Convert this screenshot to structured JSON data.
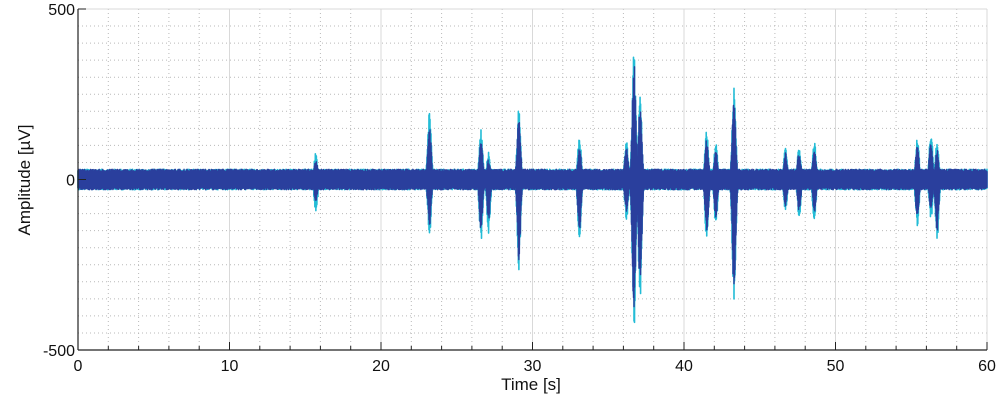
{
  "chart_data": {
    "type": "line",
    "title": "",
    "xlabel": "Time [s]",
    "ylabel": "Amplitude [µV]",
    "xlim": [
      0,
      60
    ],
    "ylim": [
      -500,
      500
    ],
    "x_major_ticks": [
      0,
      10,
      20,
      30,
      40,
      50,
      60
    ],
    "x_tick_labels": [
      "0",
      "10",
      "20",
      "30",
      "40",
      "50",
      "60"
    ],
    "x_minor_step": 2,
    "y_major_ticks": [
      -500,
      0,
      500
    ],
    "y_tick_labels": [
      "-500",
      "0",
      "500"
    ],
    "y_minor_step": 50,
    "grid": true,
    "legend": "none",
    "baseline_noise_amplitude": 30,
    "series": [
      {
        "color": "#23bcd6",
        "bursts": [
          {
            "t": 15.7,
            "hi": 80,
            "lo": -100
          },
          {
            "t": 23.2,
            "hi": 210,
            "lo": -170
          },
          {
            "t": 26.6,
            "hi": 150,
            "lo": -180
          },
          {
            "t": 27.1,
            "hi": 80,
            "lo": -160
          },
          {
            "t": 29.1,
            "hi": 215,
            "lo": -265
          },
          {
            "t": 33.1,
            "hi": 135,
            "lo": -185
          },
          {
            "t": 36.2,
            "hi": 120,
            "lo": -120
          },
          {
            "t": 36.7,
            "hi": 385,
            "lo": -445
          },
          {
            "t": 37.1,
            "hi": 255,
            "lo": -360
          },
          {
            "t": 41.5,
            "hi": 150,
            "lo": -200
          },
          {
            "t": 42.1,
            "hi": 110,
            "lo": -140
          },
          {
            "t": 43.3,
            "hi": 290,
            "lo": -380
          },
          {
            "t": 46.7,
            "hi": 100,
            "lo": -95
          },
          {
            "t": 47.6,
            "hi": 105,
            "lo": -120
          },
          {
            "t": 48.6,
            "hi": 120,
            "lo": -125
          },
          {
            "t": 55.4,
            "hi": 125,
            "lo": -140
          },
          {
            "t": 56.3,
            "hi": 145,
            "lo": -120
          },
          {
            "t": 56.7,
            "hi": 110,
            "lo": -185
          }
        ]
      },
      {
        "color": "#2a3f9d",
        "bursts": [
          {
            "t": 15.7,
            "hi": 60,
            "lo": -70
          },
          {
            "t": 23.2,
            "hi": 160,
            "lo": -140
          },
          {
            "t": 26.6,
            "hi": 120,
            "lo": -150
          },
          {
            "t": 27.1,
            "hi": 60,
            "lo": -120
          },
          {
            "t": 29.1,
            "hi": 185,
            "lo": -235
          },
          {
            "t": 33.1,
            "hi": 100,
            "lo": -150
          },
          {
            "t": 36.2,
            "hi": 100,
            "lo": -100
          },
          {
            "t": 36.7,
            "hi": 350,
            "lo": -410
          },
          {
            "t": 37.1,
            "hi": 220,
            "lo": -320
          },
          {
            "t": 41.5,
            "hi": 120,
            "lo": -165
          },
          {
            "t": 42.1,
            "hi": 90,
            "lo": -110
          },
          {
            "t": 43.3,
            "hi": 250,
            "lo": -330
          },
          {
            "t": 46.7,
            "hi": 80,
            "lo": -80
          },
          {
            "t": 47.6,
            "hi": 85,
            "lo": -100
          },
          {
            "t": 48.6,
            "hi": 95,
            "lo": -100
          },
          {
            "t": 55.4,
            "hi": 100,
            "lo": -115
          },
          {
            "t": 56.3,
            "hi": 115,
            "lo": -95
          },
          {
            "t": 56.7,
            "hi": 90,
            "lo": -155
          }
        ]
      }
    ]
  }
}
